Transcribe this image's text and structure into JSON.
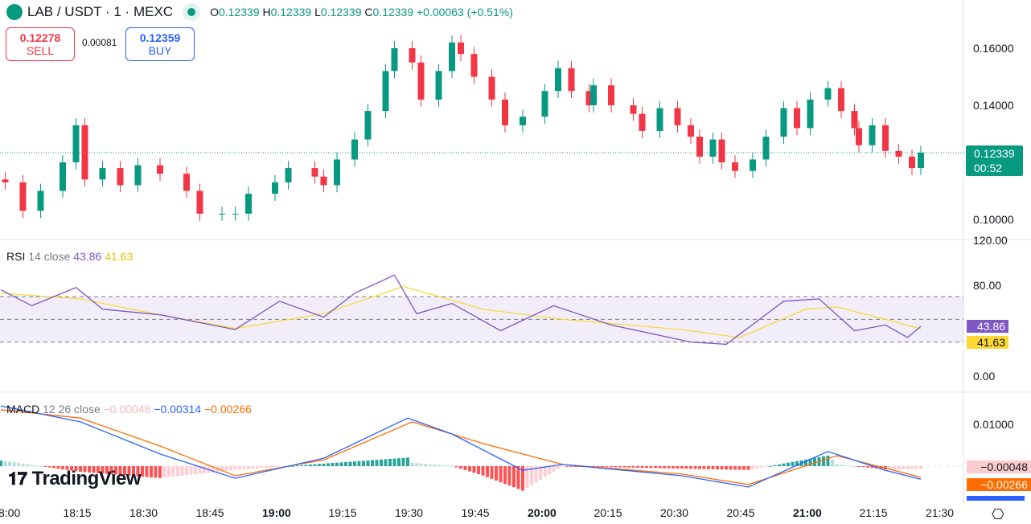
{
  "header": {
    "symbol": "LAB / USDT · 1 · MEXC",
    "open_label": "O",
    "open": "0.12339",
    "high_label": "H",
    "high": "0.12339",
    "low_label": "L",
    "low": "0.12339",
    "close_label": "C",
    "close": "0.12339",
    "change": "+0.00063 (+0.51%)"
  },
  "trade": {
    "sell_price": "0.12278",
    "sell_label": "SELL",
    "spread": "0.00081",
    "buy_price": "0.12359",
    "buy_label": "BUY"
  },
  "price_axis": {
    "ticks": [
      "0.16000",
      "0.14000",
      "0.10000"
    ],
    "last_price": "0.12339",
    "countdown": "00:52"
  },
  "rsi": {
    "label": "RSI",
    "params": "14 close",
    "value": "43.86",
    "ma_value": "41.63",
    "ticks": [
      "120.00",
      "80.00",
      "0.00"
    ]
  },
  "macd": {
    "label": "MACD",
    "params": "12 26 close",
    "hist_value": "−0.00048",
    "macd_value": "−0.00314",
    "signal_value": "−0.00266",
    "tick": "0.01000"
  },
  "time_axis": {
    "ticks": [
      "8:00",
      "18:15",
      "18:30",
      "18:45",
      "19:00",
      "19:15",
      "19:30",
      "19:45",
      "20:00",
      "20:15",
      "20:30",
      "20:45",
      "21:00",
      "21:15",
      "21:30"
    ]
  },
  "watermark": "TradingView",
  "colors": {
    "up": "#089981",
    "down": "#f23645",
    "rsi": "#7e57c2",
    "rsi_ma": "#fdd835",
    "macd": "#2962ff",
    "signal": "#ff6d00"
  },
  "chart_data": [
    {
      "type": "candlestick",
      "series": "close",
      "points": [
        [
          "17:59",
          0.113
        ],
        [
          "18:03",
          0.103
        ],
        [
          "18:07",
          0.11
        ],
        [
          "18:12",
          0.12
        ],
        [
          "18:15",
          0.133
        ],
        [
          "18:17",
          0.114
        ],
        [
          "18:21",
          0.118
        ],
        [
          "18:25",
          0.112
        ],
        [
          "18:29",
          0.119
        ],
        [
          "18:34",
          0.116
        ],
        [
          "18:40",
          0.11
        ],
        [
          "18:43",
          0.102
        ],
        [
          "18:48",
          0.102
        ],
        [
          "18:51",
          0.102
        ],
        [
          "18:54",
          0.109
        ],
        [
          "19:00",
          0.113
        ],
        [
          "19:03",
          0.118
        ],
        [
          "19:09",
          0.115
        ],
        [
          "19:11",
          0.112
        ],
        [
          "19:14",
          0.121
        ],
        [
          "19:18",
          0.128
        ],
        [
          "19:21",
          0.138
        ],
        [
          "19:25",
          0.152
        ],
        [
          "19:27",
          0.16
        ],
        [
          "19:31",
          0.155
        ],
        [
          "19:33",
          0.142
        ],
        [
          "19:37",
          0.152
        ],
        [
          "19:40",
          0.162
        ],
        [
          "19:42",
          0.158
        ],
        [
          "19:45",
          0.15
        ],
        [
          "19:49",
          0.142
        ],
        [
          "19:52",
          0.133
        ],
        [
          "19:56",
          0.136
        ],
        [
          "20:01",
          0.145
        ],
        [
          "20:04",
          0.153
        ],
        [
          "20:07",
          0.145
        ],
        [
          "20:11",
          0.14
        ],
        [
          "20:12",
          0.147
        ],
        [
          "20:16",
          0.14
        ],
        [
          "20:21",
          0.137
        ],
        [
          "20:23",
          0.131
        ],
        [
          "20:27",
          0.139
        ],
        [
          "20:31",
          0.133
        ],
        [
          "20:34",
          0.129
        ],
        [
          "20:36",
          0.122
        ],
        [
          "20:39",
          0.128
        ],
        [
          "20:41",
          0.12
        ],
        [
          "20:44",
          0.117
        ],
        [
          "20:48",
          0.121
        ],
        [
          "20:51",
          0.129
        ],
        [
          "20:55",
          0.139
        ],
        [
          "20:58",
          0.132
        ],
        [
          "21:01",
          0.142
        ],
        [
          "21:05",
          0.146
        ],
        [
          "21:08",
          0.138
        ],
        [
          "21:11",
          0.132
        ],
        [
          "21:12",
          0.126
        ],
        [
          "21:15",
          0.133
        ],
        [
          "21:18",
          0.124
        ],
        [
          "21:21",
          0.122
        ],
        [
          "21:24",
          0.118
        ],
        [
          "21:26",
          0.12339
        ]
      ],
      "ylim": [
        0.095,
        0.167
      ]
    },
    {
      "type": "line",
      "name": "RSI",
      "points": [
        [
          "17:58",
          76
        ],
        [
          "18:05",
          62
        ],
        [
          "18:15",
          78
        ],
        [
          "18:21",
          59
        ],
        [
          "18:34",
          54
        ],
        [
          "18:51",
          41
        ],
        [
          "19:01",
          66
        ],
        [
          "19:11",
          52
        ],
        [
          "19:18",
          73
        ],
        [
          "19:27",
          89
        ],
        [
          "19:32",
          55
        ],
        [
          "19:40",
          64
        ],
        [
          "19:51",
          40
        ],
        [
          "20:03",
          62
        ],
        [
          "20:16",
          45
        ],
        [
          "20:34",
          30
        ],
        [
          "20:42",
          28
        ],
        [
          "20:55",
          66
        ],
        [
          "21:03",
          68
        ],
        [
          "21:11",
          40
        ],
        [
          "21:18",
          45
        ],
        [
          "21:23",
          34
        ],
        [
          "21:26",
          43.86
        ]
      ],
      "ma": [
        [
          "17:58",
          73
        ],
        [
          "18:16",
          68
        ],
        [
          "18:34",
          54
        ],
        [
          "18:51",
          42
        ],
        [
          "19:11",
          55
        ],
        [
          "19:29",
          79
        ],
        [
          "19:47",
          59
        ],
        [
          "20:05",
          50
        ],
        [
          "20:32",
          41
        ],
        [
          "20:45",
          34
        ],
        [
          "21:00",
          59
        ],
        [
          "21:07",
          61
        ],
        [
          "21:18",
          50
        ],
        [
          "21:26",
          41.63
        ]
      ],
      "bands": [
        30,
        50,
        70
      ],
      "ylim": [
        0,
        120
      ]
    },
    {
      "type": "line",
      "name": "MACD",
      "macd": [
        [
          "17:58",
          0.0144
        ],
        [
          "18:16",
          0.0106
        ],
        [
          "18:34",
          0.0029
        ],
        [
          "18:51",
          -0.0029
        ],
        [
          "19:11",
          0.0019
        ],
        [
          "19:30",
          0.0115
        ],
        [
          "19:40",
          0.0077
        ],
        [
          "19:56",
          -0.001
        ],
        [
          "20:05",
          0.0004
        ],
        [
          "20:32",
          -0.0023
        ],
        [
          "20:47",
          -0.005
        ],
        [
          "21:05",
          0.0035
        ],
        [
          "21:18",
          -0.001
        ],
        [
          "21:26",
          -0.00314
        ]
      ],
      "signal": [
        [
          "17:58",
          0.0135
        ],
        [
          "18:16",
          0.0115
        ],
        [
          "18:34",
          0.0048
        ],
        [
          "18:51",
          -0.0023
        ],
        [
          "19:11",
          0.0015
        ],
        [
          "19:31",
          0.0106
        ],
        [
          "19:47",
          0.0054
        ],
        [
          "20:05",
          0.0004
        ],
        [
          "20:32",
          -0.0019
        ],
        [
          "20:47",
          -0.0044
        ],
        [
          "21:07",
          0.0025
        ],
        [
          "21:26",
          -0.00266
        ]
      ]
    }
  ]
}
